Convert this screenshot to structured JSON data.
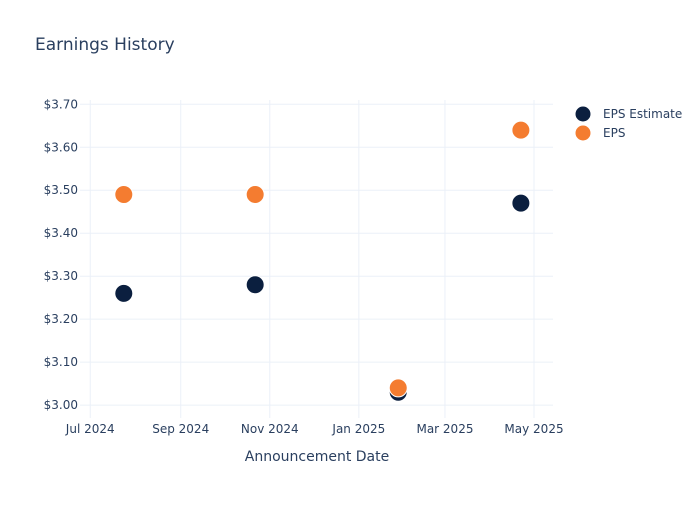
{
  "chart_data": {
    "type": "scatter",
    "title": "Earnings History",
    "xlabel": "Announcement Date",
    "ylabel": "",
    "x_ticks": [
      {
        "date": "2024-07-01",
        "label": "Jul 2024"
      },
      {
        "date": "2024-09-01",
        "label": "Sep 2024"
      },
      {
        "date": "2024-11-01",
        "label": "Nov 2024"
      },
      {
        "date": "2025-01-01",
        "label": "Jan 2025"
      },
      {
        "date": "2025-03-01",
        "label": "Mar 2025"
      },
      {
        "date": "2025-05-01",
        "label": "May 2025"
      }
    ],
    "y_ticks": [
      {
        "value": 3.0,
        "label": "$3.00"
      },
      {
        "value": 3.1,
        "label": "$3.10"
      },
      {
        "value": 3.2,
        "label": "$3.20"
      },
      {
        "value": 3.3,
        "label": "$3.30"
      },
      {
        "value": 3.4,
        "label": "$3.40"
      },
      {
        "value": 3.5,
        "label": "$3.50"
      },
      {
        "value": 3.6,
        "label": "$3.60"
      },
      {
        "value": 3.7,
        "label": "$3.70"
      }
    ],
    "xlim": [
      "2024-06-24",
      "2025-05-14"
    ],
    "ylim": [
      2.97,
      3.71
    ],
    "grid": true,
    "legend_position": "top-right",
    "series": [
      {
        "name": "EPS Estimate",
        "color": "#0b1f3f",
        "points": [
          {
            "x": "2024-07-24",
            "y": 3.26
          },
          {
            "x": "2024-10-22",
            "y": 3.28
          },
          {
            "x": "2025-01-28",
            "y": 3.03
          },
          {
            "x": "2025-04-22",
            "y": 3.47
          }
        ]
      },
      {
        "name": "EPS",
        "color": "#f47c30",
        "points": [
          {
            "x": "2024-07-24",
            "y": 3.49
          },
          {
            "x": "2024-10-22",
            "y": 3.49
          },
          {
            "x": "2025-01-28",
            "y": 3.04
          },
          {
            "x": "2025-04-22",
            "y": 3.64
          }
        ]
      }
    ]
  }
}
